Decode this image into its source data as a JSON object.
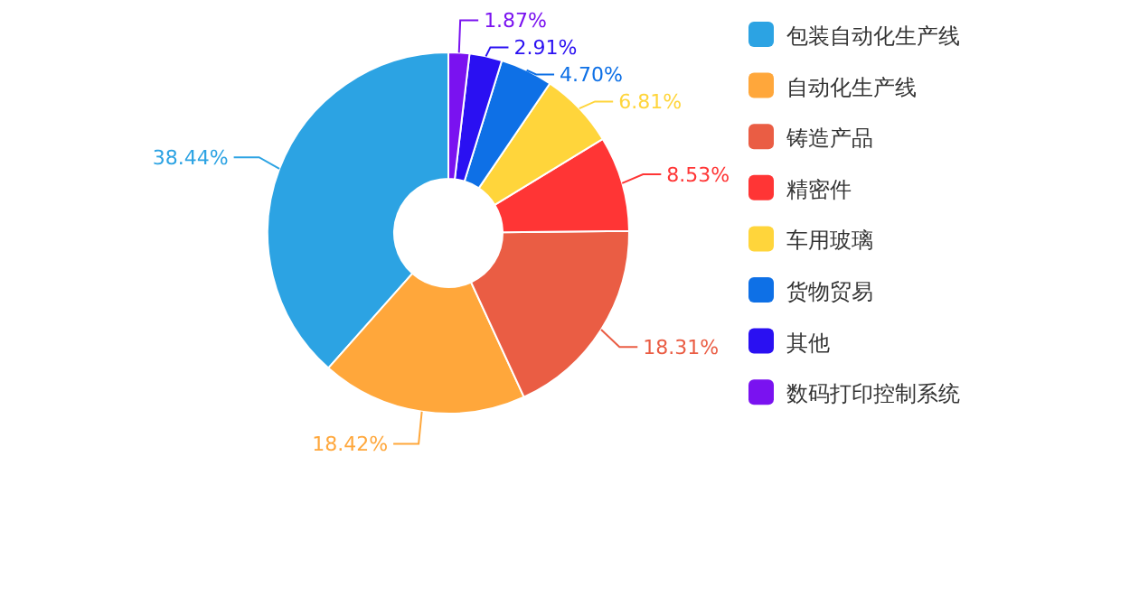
{
  "chart_data": {
    "type": "donut",
    "categories": [
      "包装自动化生产线",
      "自动化生产线",
      "铸造产品",
      "精密件",
      "车用玻璃",
      "货物贸易",
      "其他",
      "数码打印控制系统"
    ],
    "values": [
      38.44,
      18.42,
      18.31,
      8.53,
      6.81,
      4.7,
      2.91,
      1.87
    ],
    "colors": [
      "#2ca3e3",
      "#ffa73b",
      "#ea5d44",
      "#ff3535",
      "#ffd53b",
      "#0e70e6",
      "#2a10f2",
      "#7a12f0"
    ],
    "value_labels": [
      "38.44%",
      "18.42%",
      "18.31%",
      "8.53%",
      "6.81%",
      "4.70%",
      "2.91%",
      "1.87%"
    ],
    "legend": "right"
  }
}
